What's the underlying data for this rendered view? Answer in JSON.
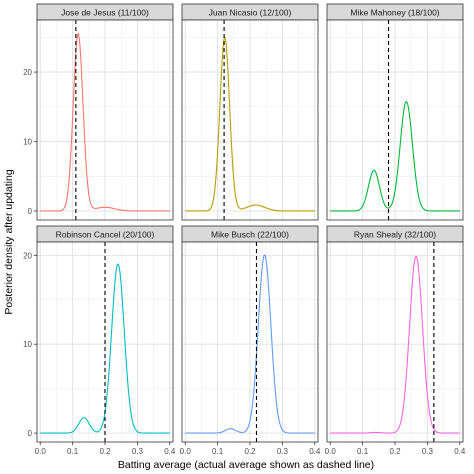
{
  "chart_data": {
    "type": "line",
    "xlabel": "Batting average (actual average shown as dashed line)",
    "ylabel": "Posterior density after updating",
    "facet_layout": "2x3",
    "x_ticks": [
      "0.0",
      "0.1",
      "0.2",
      "0.3",
      "0.4"
    ],
    "x_tick_values": [
      0.0,
      0.1,
      0.2,
      0.3,
      0.4
    ],
    "xlim": [
      -0.01,
      0.41
    ],
    "grid": true,
    "panels": [
      {
        "title": "Jose de Jesus (11/100)",
        "color": "#F8766D",
        "actual_average": 0.11,
        "y_ticks": [
          "0",
          "10",
          "20"
        ],
        "y_tick_values": [
          0,
          10,
          20
        ],
        "ylim": [
          -1.3,
          27.5
        ],
        "components": [
          {
            "weight": 0.96,
            "mean": 0.117,
            "sd": 0.015
          },
          {
            "weight": 0.04,
            "mean": 0.2,
            "sd": 0.03
          }
        ]
      },
      {
        "title": "Juan Nicasio (12/100)",
        "color": "#B79F00",
        "actual_average": 0.12,
        "y_ticks": [
          "0",
          "10",
          "20"
        ],
        "y_tick_values": [
          0,
          10,
          20
        ],
        "ylim": [
          -1.3,
          27.5
        ],
        "components": [
          {
            "weight": 0.94,
            "mean": 0.122,
            "sd": 0.015
          },
          {
            "weight": 0.06,
            "mean": 0.218,
            "sd": 0.028
          }
        ]
      },
      {
        "title": "Mike Mahoney (18/100)",
        "color": "#00BA38",
        "actual_average": 0.18,
        "y_ticks": [
          "0",
          "10",
          "20"
        ],
        "y_tick_values": [
          0,
          10,
          20
        ],
        "ylim": [
          -1.3,
          27.5
        ],
        "components": [
          {
            "weight": 0.25,
            "mean": 0.135,
            "sd": 0.017
          },
          {
            "weight": 0.75,
            "mean": 0.235,
            "sd": 0.019
          }
        ]
      },
      {
        "title": "Robinson Cancel (20/100)",
        "color": "#00BFC4",
        "actual_average": 0.2,
        "y_ticks": [
          "0",
          "10",
          "20"
        ],
        "y_tick_values": [
          0,
          10,
          20
        ],
        "ylim": [
          -1.0,
          21.5
        ],
        "components": [
          {
            "weight": 0.07,
            "mean": 0.135,
            "sd": 0.016
          },
          {
            "weight": 0.93,
            "mean": 0.24,
            "sd": 0.0195
          }
        ]
      },
      {
        "title": "Mike Busch (22/100)",
        "color": "#619CFF",
        "actual_average": 0.22,
        "y_ticks": [
          "0",
          "10",
          "20"
        ],
        "y_tick_values": [
          0,
          10,
          20
        ],
        "ylim": [
          -1.0,
          21.5
        ],
        "components": [
          {
            "weight": 0.02,
            "mean": 0.14,
            "sd": 0.016
          },
          {
            "weight": 0.98,
            "mean": 0.245,
            "sd": 0.0195
          }
        ]
      },
      {
        "title": "Ryan Shealy (32/100)",
        "color": "#F564E3",
        "actual_average": 0.32,
        "y_ticks": [
          "0",
          "10",
          "20"
        ],
        "y_tick_values": [
          0,
          10,
          20
        ],
        "ylim": [
          -1.0,
          21.5
        ],
        "components": [
          {
            "weight": 0.003,
            "mean": 0.14,
            "sd": 0.016
          },
          {
            "weight": 0.997,
            "mean": 0.265,
            "sd": 0.02
          }
        ]
      }
    ]
  }
}
